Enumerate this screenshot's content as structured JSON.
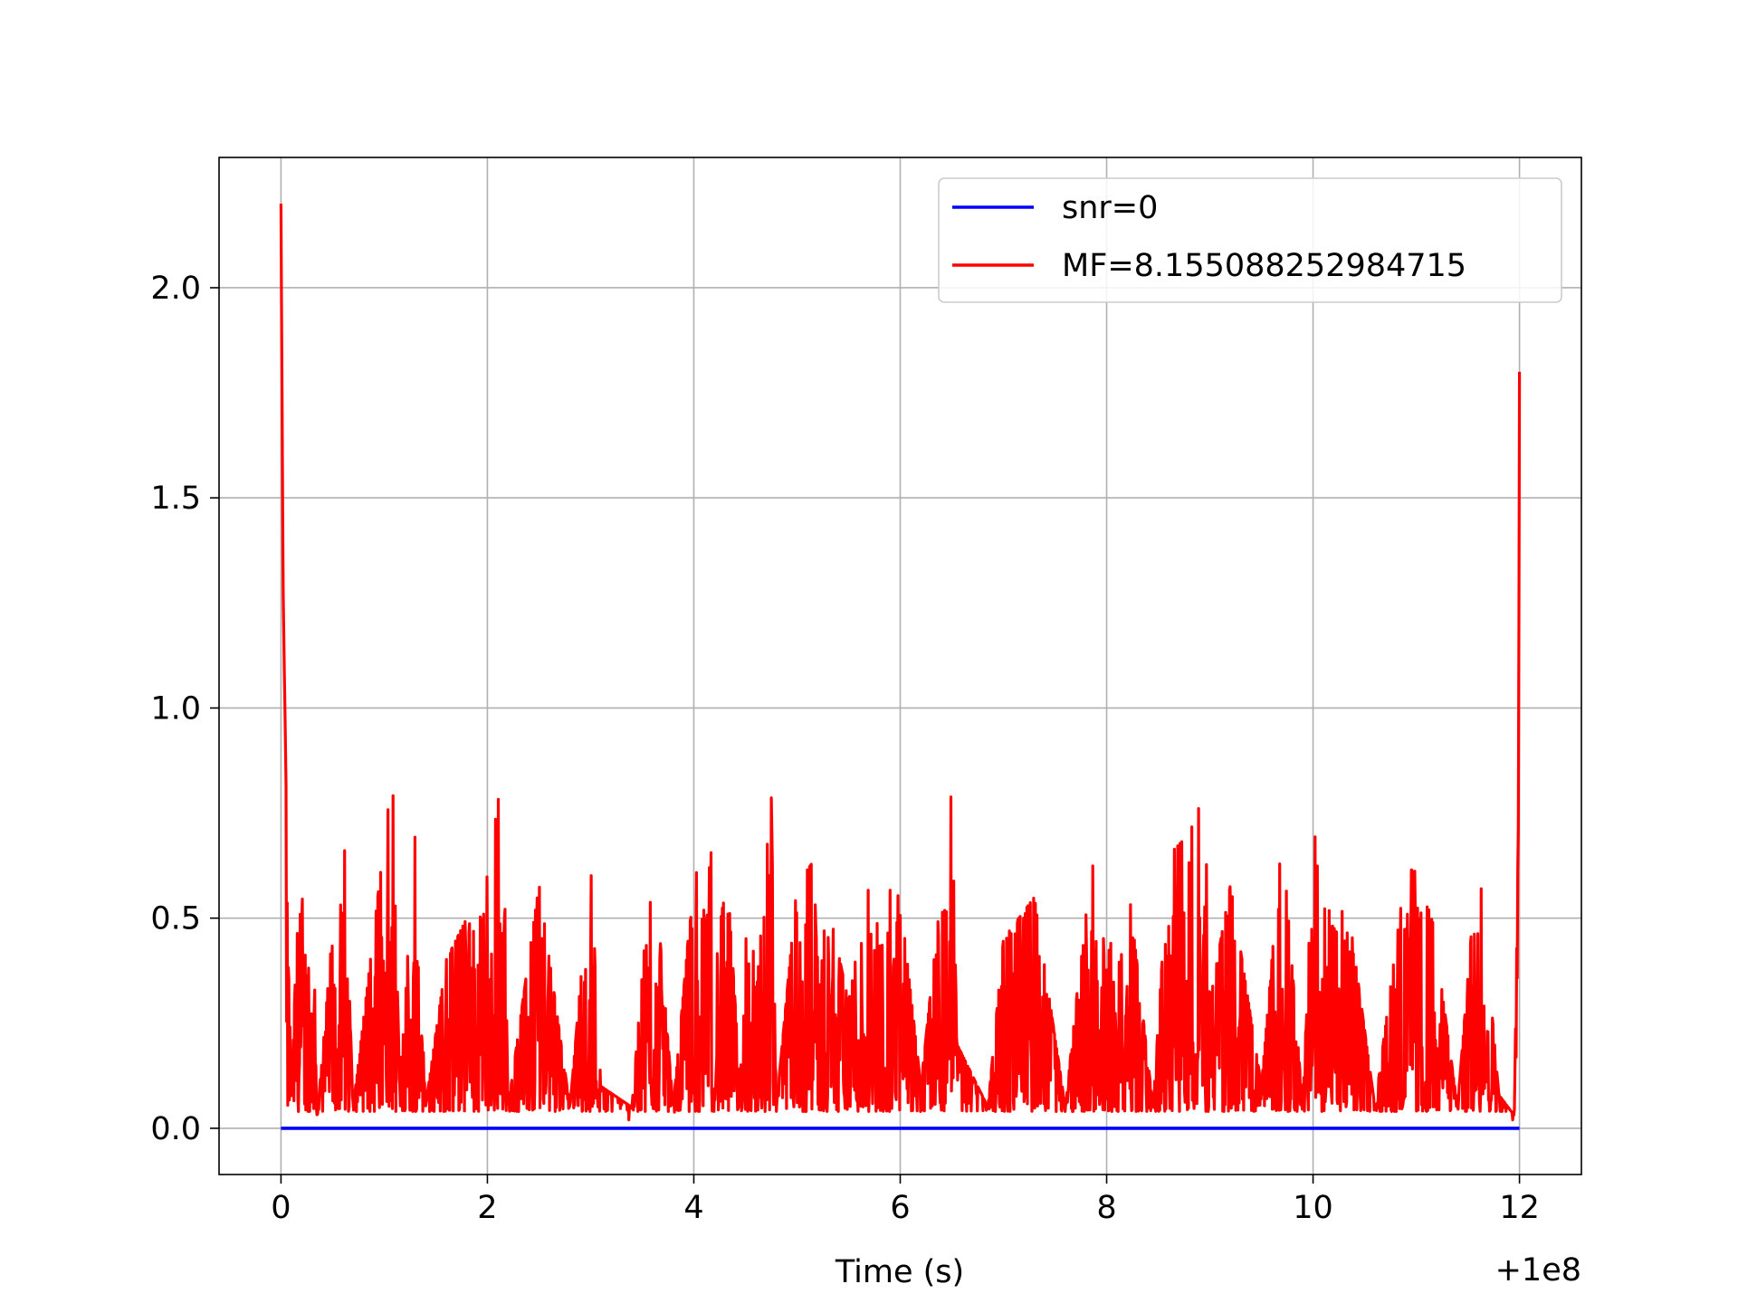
{
  "chart_data": {
    "type": "line",
    "title": "",
    "xlabel": "Time (s)",
    "ylabel": "",
    "x_offset_label": "+1e8",
    "xlim": [
      -0.6,
      12.6
    ],
    "ylim": [
      -0.11,
      2.31
    ],
    "xticks": [
      0,
      2,
      4,
      6,
      8,
      10,
      12
    ],
    "xtick_labels": [
      "0",
      "2",
      "4",
      "6",
      "8",
      "10",
      "12"
    ],
    "yticks": [
      0.0,
      0.5,
      1.0,
      1.5,
      2.0
    ],
    "ytick_labels": [
      "0.0",
      "0.5",
      "1.0",
      "1.5",
      "2.0"
    ],
    "grid": true,
    "legend": "top-right",
    "series": [
      {
        "name": "snr=0",
        "color": "#0000ff",
        "x": [
          0,
          12
        ],
        "y": [
          0.0,
          0.0
        ]
      },
      {
        "name": "MF=8.155088252984715",
        "color": "#ff0000",
        "noise_level": 0.25,
        "x": [
          0.0,
          0.02,
          0.05,
          0.1,
          0.15,
          0.3,
          0.35,
          0.6,
          0.7,
          1.08,
          1.15,
          1.3,
          1.4,
          1.6,
          2.0,
          2.15,
          2.2,
          2.5,
          2.8,
          3.0,
          3.1,
          3.4,
          3.6,
          3.8,
          4.0,
          4.3,
          4.45,
          4.55,
          4.6,
          4.75,
          4.8,
          5.0,
          5.2,
          5.5,
          5.7,
          6.0,
          6.2,
          6.5,
          6.55,
          6.85,
          7.0,
          7.3,
          7.6,
          7.85,
          8.0,
          8.2,
          8.45,
          8.6,
          8.8,
          8.95,
          9.0,
          9.2,
          9.5,
          9.7,
          9.9,
          10.0,
          10.3,
          10.6,
          10.9,
          11.1,
          11.4,
          11.6,
          11.8,
          11.95,
          11.99,
          12.0
        ],
        "y": [
          2.2,
          1.3,
          0.8,
          0.05,
          0.45,
          0.7,
          0.02,
          0.78,
          0.05,
          0.85,
          0.1,
          0.7,
          0.05,
          0.4,
          0.6,
          0.86,
          0.05,
          0.58,
          0.05,
          0.63,
          0.1,
          0.05,
          0.68,
          0.05,
          0.6,
          0.7,
          0.1,
          0.9,
          0.3,
          0.8,
          0.05,
          0.58,
          0.65,
          0.3,
          0.6,
          0.55,
          0.1,
          0.81,
          0.2,
          0.05,
          0.45,
          0.55,
          0.05,
          0.65,
          0.4,
          0.6,
          0.05,
          0.65,
          0.7,
          0.8,
          0.3,
          0.58,
          0.1,
          0.7,
          0.05,
          0.7,
          0.6,
          0.05,
          0.62,
          0.6,
          0.05,
          0.67,
          0.08,
          0.03,
          0.73,
          1.8
        ]
      }
    ]
  }
}
